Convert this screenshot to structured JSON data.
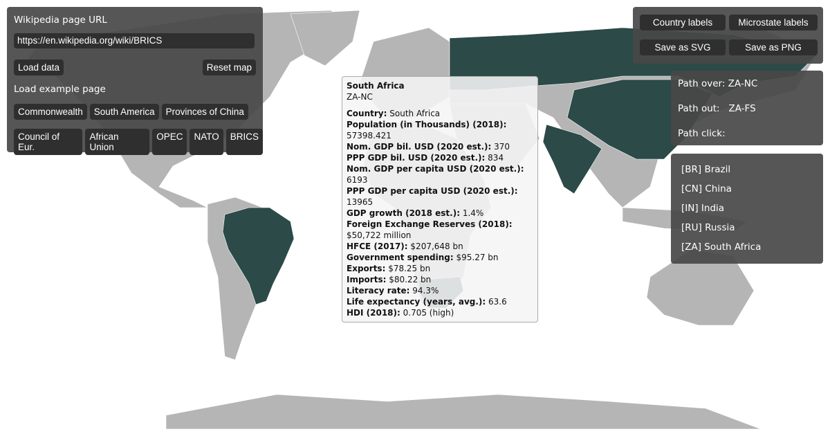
{
  "colors": {
    "land": "#b5b5b5",
    "highlight": "#2b4a48",
    "panel": "#484848",
    "button": "#2f2f2f"
  },
  "left_panel": {
    "url_label": "Wikipedia page URL",
    "url_value": "https://en.wikipedia.org/wiki/BRICS",
    "load_data": "Load data",
    "reset_map": "Reset map",
    "examples_label": "Load example page",
    "examples": [
      "Commonwealth",
      "South America",
      "Provinces of China",
      "Council of Eur.",
      "African Union",
      "OPEC",
      "NATO",
      "BRICS"
    ]
  },
  "right_panel": {
    "country_labels": "Country labels",
    "microstate_labels": "Microstate labels",
    "save_svg": "Save as SVG",
    "save_png": "Save as PNG"
  },
  "path_info": {
    "over_label": "Path over:",
    "over_value": "ZA-NC",
    "out_label": "Path out:",
    "out_value": "ZA-FS",
    "click_label": "Path click:"
  },
  "countries": [
    "[BR] Brazil",
    "[CN] China",
    "[IN] India",
    "[RU] Russia",
    "[ZA] South Africa"
  ],
  "tooltip": {
    "title": "South Africa",
    "code": "ZA-NC",
    "rows": [
      {
        "k": "Country:",
        "v": "South Africa"
      },
      {
        "k": "Population (in Thousands) (2018):",
        "v": "57398.421"
      },
      {
        "k": "Nom. GDP bil. USD (2020 est.):",
        "v": "370"
      },
      {
        "k": "PPP GDP bil. USD (2020 est.):",
        "v": "834"
      },
      {
        "k": "Nom. GDP per capita USD (2020 est.):",
        "v": "6193"
      },
      {
        "k": "PPP GDP per capita USD (2020 est.):",
        "v": "13965"
      },
      {
        "k": "GDP growth (2018 est.):",
        "v": "1.4%"
      },
      {
        "k": "Foreign Exchange Reserves (2018):",
        "v": "$50,722 million"
      },
      {
        "k": "HFCE (2017):",
        "v": "$207,648 bn"
      },
      {
        "k": "Government spending:",
        "v": "$95.27 bn"
      },
      {
        "k": "Exports:",
        "v": "$78.25 bn"
      },
      {
        "k": "Imports:",
        "v": "$80.22 bn"
      },
      {
        "k": "Literacy rate:",
        "v": "94.3%"
      },
      {
        "k": "Life expectancy (years, avg.):",
        "v": "63.6"
      },
      {
        "k": "HDI (2018):",
        "v": "0.705 (high)"
      }
    ]
  }
}
